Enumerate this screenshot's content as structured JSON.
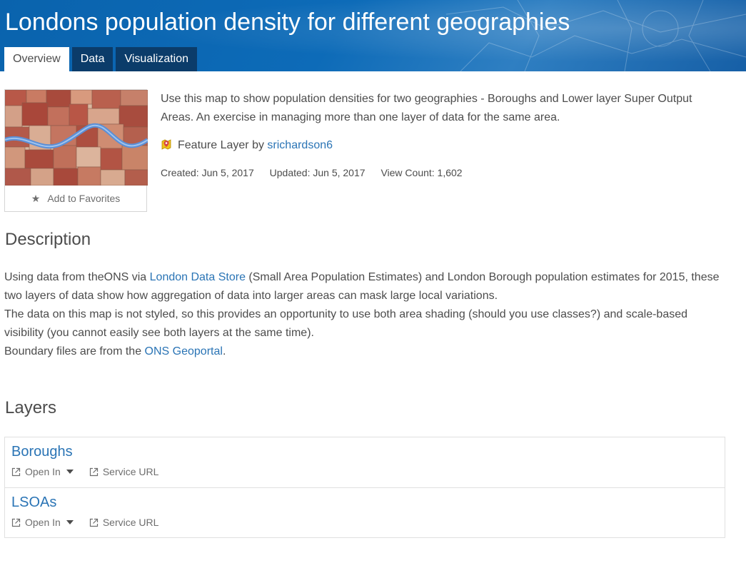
{
  "header": {
    "title": "Londons population density for different geographies",
    "tabs": [
      {
        "label": "Overview",
        "active": true
      },
      {
        "label": "Data",
        "active": false
      },
      {
        "label": "Visualization",
        "active": false
      }
    ]
  },
  "summary": {
    "add_favorites_label": "Add to Favorites",
    "snippet": "Use this map to show population densities for two geographies - Boroughs and Lower layer Super Output Areas. An exercise in managing more than one layer of data for the same area.",
    "item_type": "Feature Layer",
    "by_label": "by",
    "owner": "srichardson6",
    "created": "Created: Jun 5, 2017",
    "updated": "Updated: Jun 5, 2017",
    "views": "View Count: 1,602"
  },
  "description": {
    "heading": "Description",
    "p1_before_link": "Using data from theONS via ",
    "p1_link": "London Data Store",
    "p1_after_link": " (Small Area Population Estimates) and London Borough population estimates for 2015, these two layers of data show how aggregation of data into larger areas can mask large local variations.",
    "p2": "The data on this map is not styled, so this provides an opportunity to use both area shading (should you use classes?) and  scale-based visibility (you cannot easily see both layers at the same time).",
    "p3_before_link": "Boundary files are from the ",
    "p3_link": "ONS Geoportal",
    "p3_after_link": "."
  },
  "layers": {
    "heading": "Layers",
    "items": [
      {
        "name": "Boroughs",
        "open_in": "Open In",
        "service_url": "Service URL"
      },
      {
        "name": "LSOAs",
        "open_in": "Open In",
        "service_url": "Service URL"
      }
    ]
  },
  "colors": {
    "header_blue": "#0d6bb8",
    "tab_dark": "#0b3c6a",
    "link": "#2a74b5",
    "text": "#4c4c4c"
  }
}
